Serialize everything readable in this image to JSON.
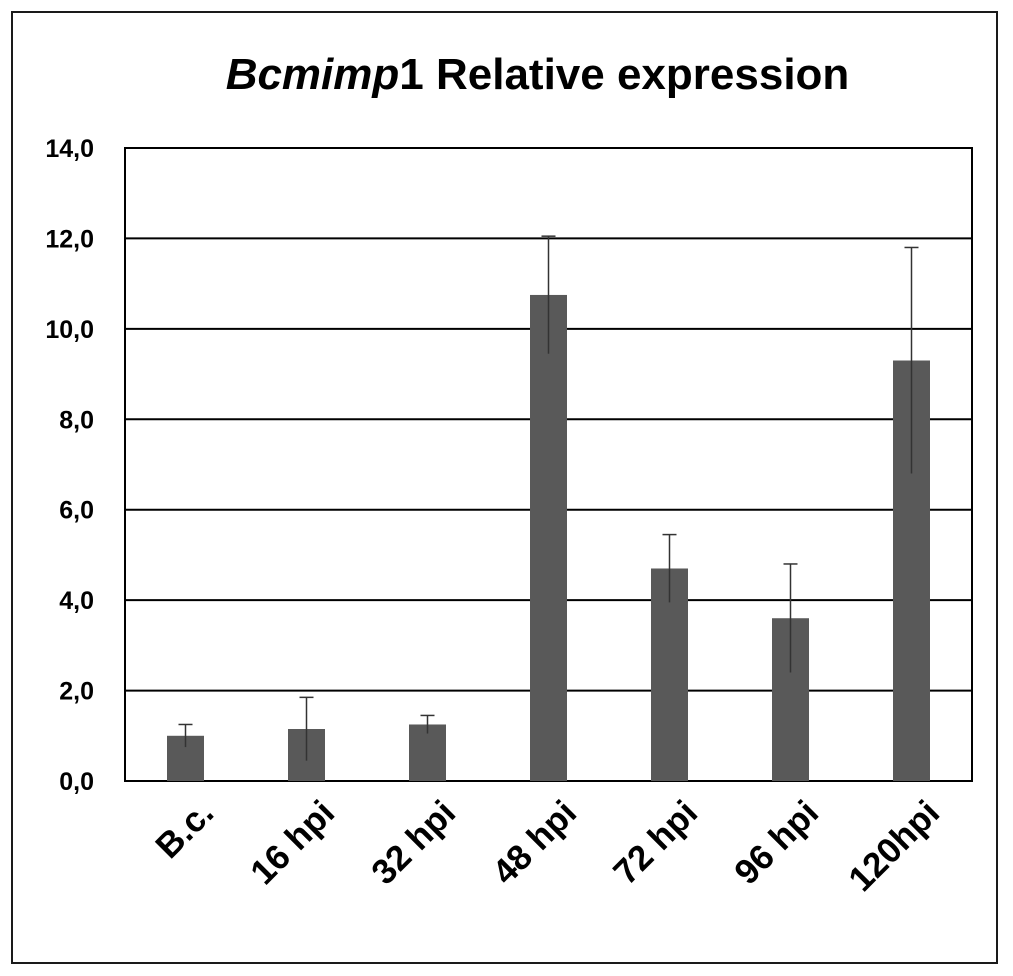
{
  "chart_data": {
    "type": "bar",
    "title_italic": "Bcmimp",
    "title_rest": "1 Relative expression",
    "categories": [
      "B.c.",
      "16 hpi",
      "32 hpi",
      "48 hpi",
      "72 hpi",
      "96 hpi",
      "120hpi"
    ],
    "values": [
      1.0,
      1.15,
      1.25,
      10.75,
      4.7,
      3.6,
      9.3
    ],
    "error_upper": [
      0.25,
      0.7,
      0.2,
      1.3,
      0.75,
      1.2,
      2.5
    ],
    "ylim": [
      0,
      14
    ],
    "yticks": [
      0,
      2,
      4,
      6,
      8,
      10,
      12,
      14
    ],
    "ytick_labels": [
      "0,0",
      "2,0",
      "4,0",
      "6,0",
      "8,0",
      "10,0",
      "12,0",
      "14,0"
    ],
    "xlabel": "",
    "ylabel": "",
    "grid": true,
    "legend": "none",
    "colors": {
      "bar": "#595959",
      "grid": "#000000",
      "text": "#000000"
    }
  }
}
